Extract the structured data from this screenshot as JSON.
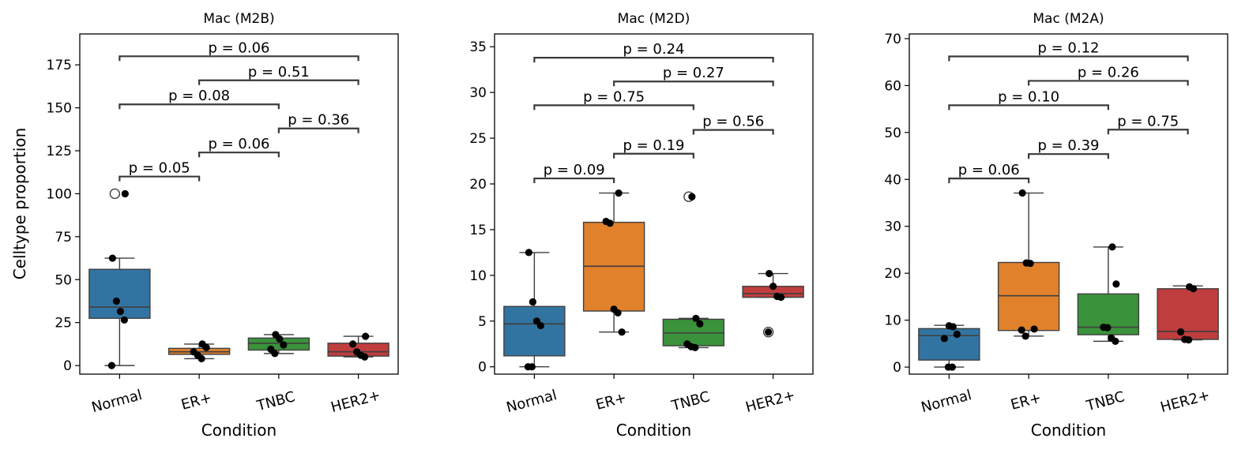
{
  "figure": {
    "ylabel": "Celltype proportion",
    "xlabel": "Condition"
  },
  "colors": {
    "Normal": "#3274a1",
    "ER+": "#e1812c",
    "TNBC": "#3a923a",
    "HER2+": "#c03d3e",
    "points": "#000000",
    "lines": "#3f3f3f"
  },
  "chart_data": [
    {
      "type": "box",
      "title": "Mac (M2B)",
      "xlabel": "Condition",
      "ylabel": "Celltype proportion",
      "categories": [
        "Normal",
        "ER+",
        "TNBC",
        "HER2+"
      ],
      "ylim": [
        -5,
        193
      ],
      "yticks": [
        0,
        25,
        50,
        75,
        100,
        125,
        150,
        175
      ],
      "boxes": [
        {
          "q1": 27.5,
          "median": 34,
          "q3": 56,
          "whisker_low": 0,
          "whisker_high": 62.5,
          "outliers": [
            100
          ]
        },
        {
          "q1": 6.5,
          "median": 8,
          "q3": 10,
          "whisker_low": 4,
          "whisker_high": 12.5,
          "outliers": []
        },
        {
          "q1": 9,
          "median": 13,
          "q3": 16,
          "whisker_low": 7,
          "whisker_high": 18,
          "outliers": []
        },
        {
          "q1": 5.5,
          "median": 8,
          "q3": 13,
          "whisker_low": 5,
          "whisker_high": 17,
          "outliers": []
        }
      ],
      "points": [
        [
          0,
          26.5,
          31.5,
          37.5,
          62.5,
          100
        ],
        [
          4,
          6,
          8,
          10.5,
          12.5
        ],
        [
          7,
          9.5,
          12,
          15.5,
          18
        ],
        [
          5,
          6,
          8,
          12.5,
          17
        ]
      ],
      "brackets": [
        {
          "from": 0,
          "to": 1,
          "y": 110,
          "label": "p = 0.05"
        },
        {
          "from": 1,
          "to": 2,
          "y": 124,
          "label": "p = 0.06"
        },
        {
          "from": 2,
          "to": 3,
          "y": 138,
          "label": "p = 0.36"
        },
        {
          "from": 0,
          "to": 2,
          "y": 152,
          "label": "p = 0.08"
        },
        {
          "from": 1,
          "to": 3,
          "y": 166,
          "label": "p = 0.51"
        },
        {
          "from": 0,
          "to": 3,
          "y": 180,
          "label": "p = 0.06"
        }
      ]
    },
    {
      "type": "box",
      "title": "Mac (M2D)",
      "xlabel": "Condition",
      "ylabel": "",
      "categories": [
        "Normal",
        "ER+",
        "TNBC",
        "HER2+"
      ],
      "ylim": [
        -0.8,
        36.4
      ],
      "yticks": [
        0,
        5,
        10,
        15,
        20,
        25,
        30,
        35
      ],
      "boxes": [
        {
          "q1": 1.2,
          "median": 4.7,
          "q3": 6.6,
          "whisker_low": 0,
          "whisker_high": 12.5,
          "outliers": []
        },
        {
          "q1": 6.1,
          "median": 11,
          "q3": 15.8,
          "whisker_low": 3.8,
          "whisker_high": 19,
          "outliers": []
        },
        {
          "q1": 2.3,
          "median": 3.7,
          "q3": 5.2,
          "whisker_low": 2.1,
          "whisker_high": 5.3,
          "outliers": [
            18.6
          ]
        },
        {
          "q1": 7.6,
          "median": 8,
          "q3": 8.8,
          "whisker_low": 7.6,
          "whisker_high": 10.2,
          "outliers": [
            3.8
          ]
        }
      ],
      "points": [
        [
          0,
          0,
          4.5,
          5,
          7.1,
          12.5
        ],
        [
          3.8,
          5.9,
          6.3,
          15.7,
          15.9,
          19
        ],
        [
          2.1,
          2.2,
          2.5,
          4.7,
          5.3,
          18.6
        ],
        [
          3.8,
          7.6,
          7.7,
          8.8,
          10.2
        ]
      ],
      "brackets": [
        {
          "from": 0,
          "to": 1,
          "y": 20.6,
          "label": "p = 0.09"
        },
        {
          "from": 1,
          "to": 2,
          "y": 23.3,
          "label": "p = 0.19"
        },
        {
          "from": 2,
          "to": 3,
          "y": 25.9,
          "label": "p = 0.56"
        },
        {
          "from": 0,
          "to": 2,
          "y": 28.6,
          "label": "p = 0.75"
        },
        {
          "from": 1,
          "to": 3,
          "y": 31.2,
          "label": "p = 0.27"
        },
        {
          "from": 0,
          "to": 3,
          "y": 33.8,
          "label": "p = 0.24"
        }
      ]
    },
    {
      "type": "box",
      "title": "Mac (M2A)",
      "xlabel": "Condition",
      "ylabel": "",
      "categories": [
        "Normal",
        "ER+",
        "TNBC",
        "HER2+"
      ],
      "ylim": [
        -1.5,
        71
      ],
      "yticks": [
        0,
        10,
        20,
        30,
        40,
        50,
        60,
        70
      ],
      "boxes": [
        {
          "q1": 1.5,
          "median": 6.7,
          "q3": 8.2,
          "whisker_low": 0,
          "whisker_high": 8.9,
          "outliers": []
        },
        {
          "q1": 7.8,
          "median": 15.2,
          "q3": 22.3,
          "whisker_low": 6.6,
          "whisker_high": 37.1,
          "outliers": []
        },
        {
          "q1": 6.9,
          "median": 8.5,
          "q3": 15.6,
          "whisker_low": 5.5,
          "whisker_high": 25.6,
          "outliers": []
        },
        {
          "q1": 5.9,
          "median": 7.6,
          "q3": 16.7,
          "whisker_low": 5.8,
          "whisker_high": 17.3,
          "outliers": []
        }
      ],
      "points": [
        [
          0,
          0,
          6.1,
          7,
          8.6,
          8.8
        ],
        [
          6.6,
          7.9,
          8.1,
          22.1,
          22.2,
          37.1
        ],
        [
          5.5,
          6.2,
          8.4,
          8.5,
          17.7,
          25.6
        ],
        [
          5.8,
          5.9,
          7.5,
          16.7,
          17.1
        ]
      ],
      "brackets": [
        {
          "from": 0,
          "to": 1,
          "y": 40.2,
          "label": "p = 0.06"
        },
        {
          "from": 1,
          "to": 2,
          "y": 45.4,
          "label": "p = 0.39"
        },
        {
          "from": 2,
          "to": 3,
          "y": 50.6,
          "label": "p = 0.75"
        },
        {
          "from": 0,
          "to": 2,
          "y": 55.8,
          "label": "p = 0.10"
        },
        {
          "from": 1,
          "to": 3,
          "y": 61,
          "label": "p = 0.26"
        },
        {
          "from": 0,
          "to": 3,
          "y": 66.2,
          "label": "p = 0.12"
        }
      ]
    }
  ]
}
